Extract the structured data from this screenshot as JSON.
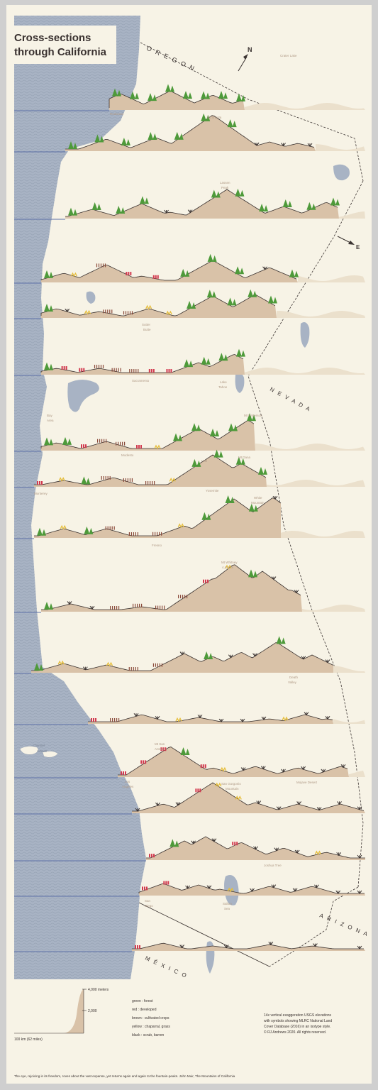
{
  "title": {
    "line1": "Cross-sections",
    "line2": "through California"
  },
  "states": {
    "oregon": "O R E G O N",
    "nevada": "N E V A D A",
    "arizona": "A R I Z O N A",
    "mexico": "M É X I C O"
  },
  "compass": {
    "north": "N",
    "east": "E"
  },
  "places": {
    "crater_lake": "Crater Lake",
    "redwood": "Redwood",
    "mt_shasta": "Mt Shasta",
    "lassen_peak_1": "Lassen",
    "lassen_peak_2": "Peak",
    "sutter_buttes_1": "Sutter",
    "sutter_buttes_2": "Butte",
    "sacramento": "Sacramento",
    "lake_tahoe_1": "Lake",
    "lake_tahoe_2": "Tahoe",
    "bay_area_1": "Bay",
    "bay_area_2": "Area",
    "mt_patterson": "Mt Patterson",
    "modesto": "Modesto",
    "half_dome": "Half",
    "mt_dana": "Mt Dana",
    "monterey": "Monterey",
    "yosemite": "Yosemite",
    "white_mountain_1": "White",
    "white_mountain_2": "Mountain",
    "fresno": "Fresno",
    "mt_whitney_1": "Mt Whitney",
    "mt_whitney_2": "4,421 m",
    "death_valley_1": "Death",
    "death_valley_2": "Valley",
    "channel_islands_1": "Channel",
    "channel_islands_2": "Islands",
    "mt_san_antonio_1": "Mt San",
    "mt_san_antonio_2": "Antonio",
    "los_angeles_1": "Los",
    "los_angeles_2": "Angeles",
    "mojave_desert": "Mojave Desert",
    "san_gorgonio_1": "San Gorgonio",
    "san_gorgonio_2": "Mountain",
    "joshua_tree": "Joshua Tree",
    "san_diego_1": "San",
    "san_diego_2": "Diego",
    "salton_sea_1": "Salton",
    "salton_sea_2": "Sea"
  },
  "scale": {
    "top": "4,000 meters",
    "mid": "2,000",
    "bottom": "100 km (62 miles)"
  },
  "legend": [
    "green : forest",
    "red : developed",
    "brown : cultivated crops",
    "yellow : chaparral, grass",
    "black : scrub, barren"
  ],
  "colors": {
    "forest": "#4e9a3a",
    "developed": "#d23a4f",
    "crops": "#8a4a3a",
    "chaparral": "#e6be3c",
    "scrub": "#3a3230",
    "terrain": "#d9c2a8",
    "ocean": "#a7b2c2",
    "land": "#f7f3e6"
  },
  "notes": [
    "14x vertical exaggeration USGS elevations",
    "with symbols showing MLRC National Land",
    "Cover Database (2016) in an isotype style.",
    "© RJ Andrews 2020. All rights reserved."
  ],
  "quote": "The eye, rejoicing in its freedom, roves about the vast expanse, yet returns again and again to the fountain-peaks. John Muir, The Mountains of California"
}
